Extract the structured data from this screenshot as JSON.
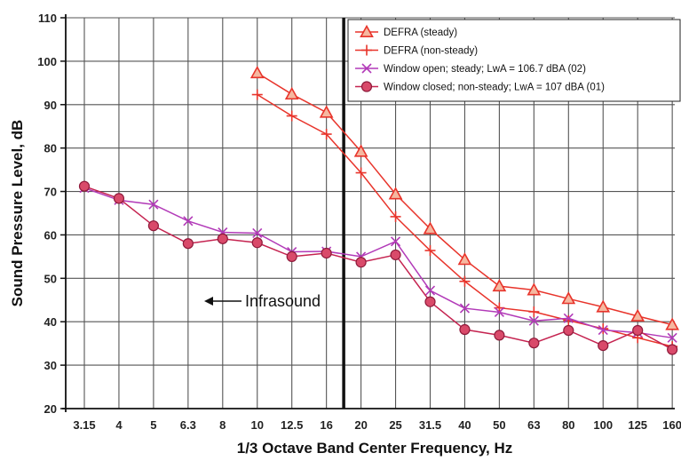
{
  "chart_data": {
    "type": "line",
    "title": "",
    "xlabel": "1/3 Octave Band Center Frequency, Hz",
    "ylabel": "Sound Pressure Level, dB",
    "categories": [
      "3.15",
      "4",
      "5",
      "6.3",
      "8",
      "10",
      "12.5",
      "16",
      "20",
      "25",
      "31.5",
      "40",
      "50",
      "63",
      "80",
      "100",
      "125",
      "160"
    ],
    "ylim": [
      20,
      110
    ],
    "yticks": [
      20,
      30,
      40,
      50,
      60,
      70,
      80,
      90,
      100,
      110
    ],
    "grid": true,
    "legend_position": "top-right",
    "series": [
      {
        "name": "DEFRA (steady)",
        "color": "#e8342b",
        "marker": "triangle",
        "values": [
          null,
          null,
          null,
          null,
          null,
          97.3,
          92.4,
          88.2,
          79.2,
          69.4,
          61.4,
          54.3,
          48.2,
          47.3,
          45.3,
          43.4,
          41.3,
          39.3
        ]
      },
      {
        "name": "DEFRA (non-steady)",
        "color": "#e8342b",
        "marker": "plus",
        "values": [
          null,
          null,
          null,
          null,
          null,
          92.3,
          87.4,
          83.2,
          74.3,
          64.2,
          56.4,
          49.3,
          43.2,
          42.3,
          40.3,
          38.4,
          36.3,
          34.3
        ]
      },
      {
        "name": "Window open; steady; LwA = 106.7 dBA (02)",
        "color": "#b23ab8",
        "marker": "x",
        "values": [
          70.8,
          68.0,
          67.0,
          63.2,
          60.6,
          60.4,
          56.1,
          56.2,
          55.0,
          58.5,
          47.2,
          43.1,
          42.2,
          40.2,
          40.8,
          38.1,
          37.5,
          36.3
        ]
      },
      {
        "name": "Window closed; non-steady; LwA = 107 dBA (01)",
        "color": "#c52350",
        "marker": "circle",
        "values": [
          71.2,
          68.4,
          62.1,
          58.0,
          59.1,
          58.2,
          55.0,
          55.8,
          53.7,
          55.4,
          44.6,
          38.2,
          36.9,
          35.1,
          38.0,
          34.5,
          38.0,
          33.6
        ]
      }
    ],
    "annotations": [
      {
        "text": "Infrasound",
        "arrow": "left"
      }
    ],
    "divider_between": [
      "16",
      "20"
    ]
  }
}
